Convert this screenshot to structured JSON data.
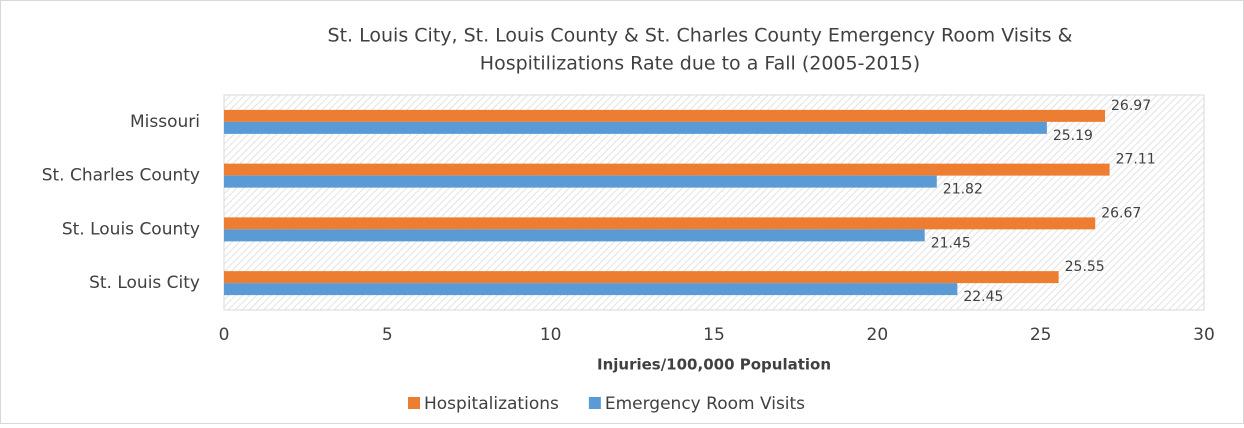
{
  "chart_data": {
    "type": "bar",
    "orientation": "horizontal",
    "title": [
      "St. Louis City, St. Louis County & St. Charles County Emergency Room Visits &",
      "Hospitilizations Rate due to a Fall (2005-2015)"
    ],
    "x_label": "Injuries/100,000 Population",
    "categories": [
      "St. Louis City",
      "St. Louis County",
      "St. Charles County",
      "Missouri"
    ],
    "series": [
      {
        "name": "Hospitalizations",
        "color": "#ed7d31",
        "values": [
          25.55,
          26.67,
          27.11,
          26.97
        ]
      },
      {
        "name": "Emergency Room Visits",
        "color": "#5b9bd5",
        "values": [
          22.45,
          21.45,
          21.82,
          25.19
        ]
      }
    ],
    "xlim": [
      0,
      30
    ],
    "xticks": [
      0,
      5,
      10,
      15,
      20,
      25,
      30
    ],
    "legend": "bottom"
  }
}
